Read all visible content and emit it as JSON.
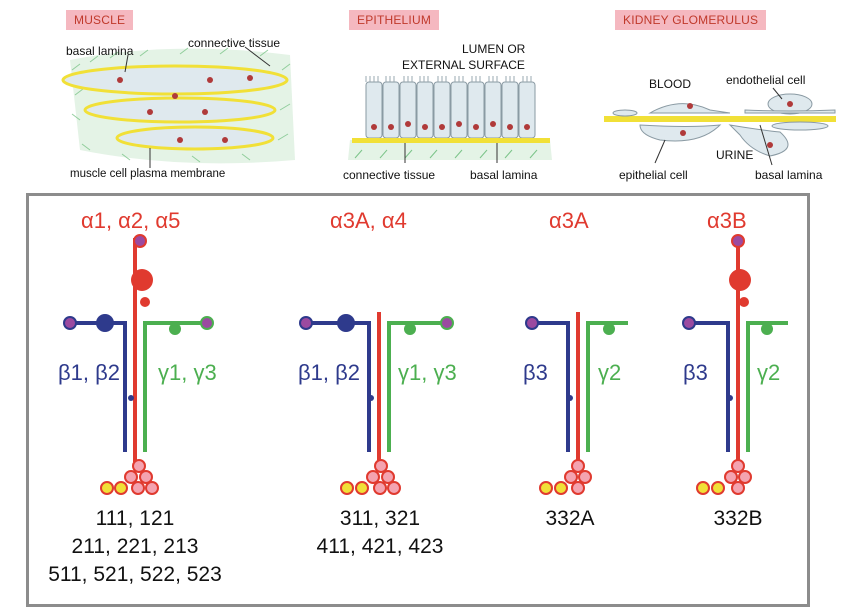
{
  "top": {
    "muscle": {
      "title": "MUSCLE",
      "basal_lamina": "basal lamina",
      "connective_tissue": "connective tissue",
      "plasma_membrane": "muscle cell plasma membrane"
    },
    "epithelium": {
      "title": "EPITHELIUM",
      "lumen_line1": "LUMEN OR",
      "lumen_line2": "EXTERNAL SURFACE",
      "connective_tissue": "connective tissue",
      "basal_lamina": "basal lamina"
    },
    "kidney": {
      "title": "KIDNEY GLOMERULUS",
      "blood": "BLOOD",
      "endothelial_cell": "endothelial cell",
      "urine": "URINE",
      "epithelial_cell": "epithelial cell",
      "basal_lamina": "basal lamina"
    }
  },
  "laminins": [
    {
      "alpha": "α1, α2, α5",
      "beta": "β1, β2",
      "gamma": "γ1, γ3",
      "isoforms": [
        "111, 121",
        "211, 221, 213",
        "511, 521, 522, 523"
      ]
    },
    {
      "alpha": "α3A, α4",
      "beta": "β1, β2",
      "gamma": "γ1, γ3",
      "isoforms": [
        "311, 321",
        "411, 421, 423"
      ]
    },
    {
      "alpha": "α3A",
      "beta": "β3",
      "gamma": "γ2",
      "isoforms": [
        "332A"
      ]
    },
    {
      "alpha": "α3B",
      "beta": "β3",
      "gamma": "γ2",
      "isoforms": [
        "332B"
      ]
    }
  ],
  "colors": {
    "alpha": "#e03a2f",
    "beta": "#2e3a8c",
    "gamma": "#4caf50",
    "basal_lamina": "#f5e642",
    "label_bg": "#f5b8c0"
  }
}
